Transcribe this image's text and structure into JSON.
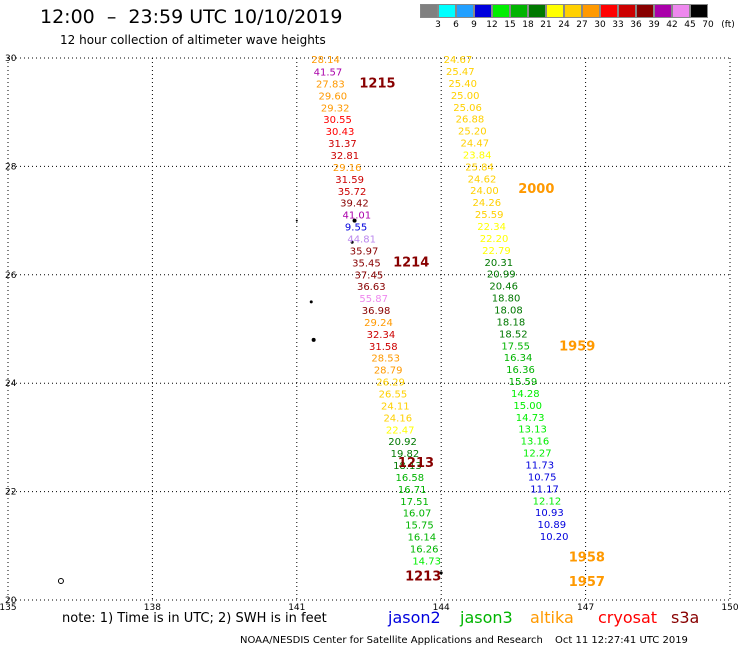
{
  "header": {
    "title": "12:00  –  23:59 UTC 10/10/2019",
    "subtitle": "12 hour collection of altimeter wave heights"
  },
  "legend": {
    "colors": [
      "#808080",
      "#00ffff",
      "#22a0ff",
      "#0000dd",
      "#00ee00",
      "#00b400",
      "#007800",
      "#ffff00",
      "#ffd000",
      "#ff9900",
      "#ff0000",
      "#cc0000",
      "#880000",
      "#aa00aa",
      "#ee88ee",
      "#000000"
    ],
    "labels": [
      "3",
      "6",
      "9",
      "12",
      "15",
      "18",
      "21",
      "24",
      "27",
      "30",
      "33",
      "36",
      "39",
      "42",
      "45",
      "70",
      "(ft)"
    ]
  },
  "chart_data": {
    "type": "scatter",
    "title": "12:00  –  23:59 UTC 10/10/2019",
    "subtitle": "12 hour collection of altimeter wave heights",
    "x_ticks": [
      "135",
      "138",
      "141",
      "144",
      "147",
      "150"
    ],
    "y_ticks": [
      "20",
      "22",
      "24",
      "26",
      "28",
      "30"
    ],
    "xlim": [
      135,
      150
    ],
    "ylim": [
      20,
      30
    ],
    "grid": true,
    "left_track": [
      {
        "lon": 141.3,
        "lat": 29.98,
        "label": "28.14",
        "color": "#ff9900"
      },
      {
        "lon": 141.35,
        "lat": 29.75,
        "label": "41.57",
        "color": "#aa00aa"
      },
      {
        "lon": 141.4,
        "lat": 29.53,
        "label": "27.83",
        "color": "#ff9900"
      },
      {
        "lon": 141.45,
        "lat": 29.31,
        "label": "29.60",
        "color": "#ff9900"
      },
      {
        "lon": 141.5,
        "lat": 29.09,
        "label": "29.32",
        "color": "#ff9900"
      },
      {
        "lon": 141.55,
        "lat": 28.87,
        "label": "30.55",
        "color": "#ff0000"
      },
      {
        "lon": 141.6,
        "lat": 28.65,
        "label": "30.43",
        "color": "#ff0000"
      },
      {
        "lon": 141.65,
        "lat": 28.43,
        "label": "31.37",
        "color": "#cc0000"
      },
      {
        "lon": 141.7,
        "lat": 28.21,
        "label": "32.81",
        "color": "#cc0000"
      },
      {
        "lon": 141.75,
        "lat": 27.99,
        "label": "29.16",
        "color": "#ff9900"
      },
      {
        "lon": 141.8,
        "lat": 27.77,
        "label": "31.59",
        "color": "#cc0000"
      },
      {
        "lon": 141.85,
        "lat": 27.55,
        "label": "35.72",
        "color": "#cc0000"
      },
      {
        "lon": 141.9,
        "lat": 27.33,
        "label": "39.42",
        "color": "#880000"
      },
      {
        "lon": 141.95,
        "lat": 27.11,
        "label": "41.01",
        "color": "#aa00aa"
      },
      {
        "lon": 142.0,
        "lat": 26.89,
        "label": "9.55",
        "color": "#0000dd"
      },
      {
        "lon": 142.05,
        "lat": 26.67,
        "label": "44.81",
        "color": "#bb88ee"
      },
      {
        "lon": 142.1,
        "lat": 26.45,
        "label": "35.97",
        "color": "#880000"
      },
      {
        "lon": 142.15,
        "lat": 26.23,
        "label": "35.45",
        "color": "#880000"
      },
      {
        "lon": 142.2,
        "lat": 26.01,
        "label": "37.45",
        "color": "#880000"
      },
      {
        "lon": 142.25,
        "lat": 25.79,
        "label": "36.63",
        "color": "#880000"
      },
      {
        "lon": 142.3,
        "lat": 25.57,
        "label": "55.87",
        "color": "#ee88ee"
      },
      {
        "lon": 142.35,
        "lat": 25.35,
        "label": "36.98",
        "color": "#880000"
      },
      {
        "lon": 142.4,
        "lat": 25.13,
        "label": "29.24",
        "color": "#ff9900"
      },
      {
        "lon": 142.45,
        "lat": 24.91,
        "label": "32.34",
        "color": "#cc0000"
      },
      {
        "lon": 142.5,
        "lat": 24.69,
        "label": "31.58",
        "color": "#cc0000"
      },
      {
        "lon": 142.55,
        "lat": 24.47,
        "label": "28.53",
        "color": "#ff9900"
      },
      {
        "lon": 142.6,
        "lat": 24.25,
        "label": "28.79",
        "color": "#ff9900"
      },
      {
        "lon": 142.65,
        "lat": 24.03,
        "label": "26.29",
        "color": "#ffd000"
      },
      {
        "lon": 142.7,
        "lat": 23.81,
        "label": "26.55",
        "color": "#ffd000"
      },
      {
        "lon": 142.75,
        "lat": 23.59,
        "label": "24.11",
        "color": "#ffd000"
      },
      {
        "lon": 142.8,
        "lat": 23.37,
        "label": "24.16",
        "color": "#ffd000"
      },
      {
        "lon": 142.85,
        "lat": 23.15,
        "label": "22.47",
        "color": "#ffff00"
      },
      {
        "lon": 142.9,
        "lat": 22.93,
        "label": "20.92",
        "color": "#007800"
      },
      {
        "lon": 142.95,
        "lat": 22.71,
        "label": "19.82",
        "color": "#007800"
      },
      {
        "lon": 143.0,
        "lat": 22.49,
        "label": "18.13",
        "color": "#007800"
      },
      {
        "lon": 143.05,
        "lat": 22.27,
        "label": "16.58",
        "color": "#00b400"
      },
      {
        "lon": 143.1,
        "lat": 22.05,
        "label": "16.71",
        "color": "#00b400"
      },
      {
        "lon": 143.15,
        "lat": 21.83,
        "label": "17.51",
        "color": "#00b400"
      },
      {
        "lon": 143.2,
        "lat": 21.61,
        "label": "16.07",
        "color": "#00b400"
      },
      {
        "lon": 143.25,
        "lat": 21.39,
        "label": "15.75",
        "color": "#00b400"
      },
      {
        "lon": 143.3,
        "lat": 21.17,
        "label": "16.14",
        "color": "#00b400"
      },
      {
        "lon": 143.35,
        "lat": 20.95,
        "label": "16.26",
        "color": "#00b400"
      },
      {
        "lon": 143.4,
        "lat": 20.73,
        "label": "14.73",
        "color": "#00ee00"
      }
    ],
    "right_track": [
      {
        "lon": 144.05,
        "lat": 29.98,
        "label": "24.67",
        "color": "#ffd000"
      },
      {
        "lon": 144.1,
        "lat": 29.76,
        "label": "25.47",
        "color": "#ffd000"
      },
      {
        "lon": 144.15,
        "lat": 29.54,
        "label": "25.40",
        "color": "#ffd000"
      },
      {
        "lon": 144.2,
        "lat": 29.32,
        "label": "25.00",
        "color": "#ffd000"
      },
      {
        "lon": 144.25,
        "lat": 29.1,
        "label": "25.06",
        "color": "#ffd000"
      },
      {
        "lon": 144.3,
        "lat": 28.88,
        "label": "26.88",
        "color": "#ffd000"
      },
      {
        "lon": 144.35,
        "lat": 28.66,
        "label": "25.20",
        "color": "#ffd000"
      },
      {
        "lon": 144.4,
        "lat": 28.44,
        "label": "24.47",
        "color": "#ffd000"
      },
      {
        "lon": 144.45,
        "lat": 28.22,
        "label": "23.84",
        "color": "#ffff00"
      },
      {
        "lon": 144.5,
        "lat": 28.0,
        "label": "25.84",
        "color": "#ffd000"
      },
      {
        "lon": 144.55,
        "lat": 27.78,
        "label": "24.62",
        "color": "#ffd000"
      },
      {
        "lon": 144.6,
        "lat": 27.56,
        "label": "24.00",
        "color": "#ffd000"
      },
      {
        "lon": 144.65,
        "lat": 27.34,
        "label": "24.26",
        "color": "#ffd000"
      },
      {
        "lon": 144.7,
        "lat": 27.12,
        "label": "25.59",
        "color": "#ffd000"
      },
      {
        "lon": 144.75,
        "lat": 26.9,
        "label": "22.34",
        "color": "#ffff00"
      },
      {
        "lon": 144.8,
        "lat": 26.68,
        "label": "22.20",
        "color": "#ffff00"
      },
      {
        "lon": 144.85,
        "lat": 26.46,
        "label": "22.79",
        "color": "#ffff00"
      },
      {
        "lon": 144.9,
        "lat": 26.24,
        "label": "20.31",
        "color": "#007800"
      },
      {
        "lon": 144.95,
        "lat": 26.02,
        "label": "20.99",
        "color": "#007800"
      },
      {
        "lon": 145.0,
        "lat": 25.8,
        "label": "20.46",
        "color": "#007800"
      },
      {
        "lon": 145.05,
        "lat": 25.58,
        "label": "18.80",
        "color": "#007800"
      },
      {
        "lon": 145.1,
        "lat": 25.36,
        "label": "18.08",
        "color": "#007800"
      },
      {
        "lon": 145.15,
        "lat": 25.14,
        "label": "18.18",
        "color": "#007800"
      },
      {
        "lon": 145.2,
        "lat": 24.92,
        "label": "18.52",
        "color": "#007800"
      },
      {
        "lon": 145.25,
        "lat": 24.7,
        "label": "17.55",
        "color": "#00b400"
      },
      {
        "lon": 145.3,
        "lat": 24.48,
        "label": "16.34",
        "color": "#00b400"
      },
      {
        "lon": 145.35,
        "lat": 24.26,
        "label": "16.36",
        "color": "#00b400"
      },
      {
        "lon": 145.4,
        "lat": 24.04,
        "label": "15.59",
        "color": "#00b400"
      },
      {
        "lon": 145.45,
        "lat": 23.82,
        "label": "14.28",
        "color": "#00ee00"
      },
      {
        "lon": 145.5,
        "lat": 23.6,
        "label": "15.00",
        "color": "#00ee00"
      },
      {
        "lon": 145.55,
        "lat": 23.38,
        "label": "14.73",
        "color": "#00ee00"
      },
      {
        "lon": 145.6,
        "lat": 23.16,
        "label": "13.13",
        "color": "#00ee00"
      },
      {
        "lon": 145.65,
        "lat": 22.94,
        "label": "13.16",
        "color": "#00ee00"
      },
      {
        "lon": 145.7,
        "lat": 22.72,
        "label": "12.27",
        "color": "#00ee00"
      },
      {
        "lon": 145.75,
        "lat": 22.5,
        "label": "11.73",
        "color": "#0000dd"
      },
      {
        "lon": 145.8,
        "lat": 22.28,
        "label": "10.75",
        "color": "#0000dd"
      },
      {
        "lon": 145.85,
        "lat": 22.06,
        "label": "11.17",
        "color": "#0000dd"
      },
      {
        "lon": 145.9,
        "lat": 21.84,
        "label": "12.12",
        "color": "#00ee00"
      },
      {
        "lon": 145.95,
        "lat": 21.62,
        "label": "10.93",
        "color": "#0000dd"
      },
      {
        "lon": 146.0,
        "lat": 21.4,
        "label": "10.89",
        "color": "#0000dd"
      },
      {
        "lon": 146.05,
        "lat": 21.18,
        "label": "10.20",
        "color": "#0000dd"
      }
    ],
    "time_labels": [
      {
        "lon": 142.3,
        "lat": 29.55,
        "label": "1215",
        "color": "#880000"
      },
      {
        "lon": 143.0,
        "lat": 26.25,
        "label": "1214",
        "color": "#880000"
      },
      {
        "lon": 143.1,
        "lat": 22.55,
        "label": "1213",
        "color": "#880000"
      },
      {
        "lon": 143.25,
        "lat": 20.45,
        "label": "1213",
        "color": "#880000"
      },
      {
        "lon": 145.6,
        "lat": 27.6,
        "label": "2000",
        "color": "#ff9900"
      },
      {
        "lon": 146.45,
        "lat": 24.7,
        "label": "1959",
        "color": "#ff9900"
      },
      {
        "lon": 146.65,
        "lat": 20.8,
        "label": "1958",
        "color": "#ff9900"
      },
      {
        "lon": 146.65,
        "lat": 20.35,
        "label": "1957",
        "color": "#ff9900"
      }
    ]
  },
  "footer": {
    "note": "note:  1) Time is in UTC;  2) SWH is in feet",
    "satellites": [
      {
        "name": "jason2",
        "color": "#0000dd"
      },
      {
        "name": "jason3",
        "color": "#00b400"
      },
      {
        "name": "altika",
        "color": "#ff9900"
      },
      {
        "name": "cryosat",
        "color": "#ff0000"
      },
      {
        "name": "s3a",
        "color": "#880000"
      }
    ],
    "credit": "NOAA/NESDIS Center for Satellite Applications and Research",
    "timestamp": "Oct 11 12:27:41 UTC 2019"
  }
}
